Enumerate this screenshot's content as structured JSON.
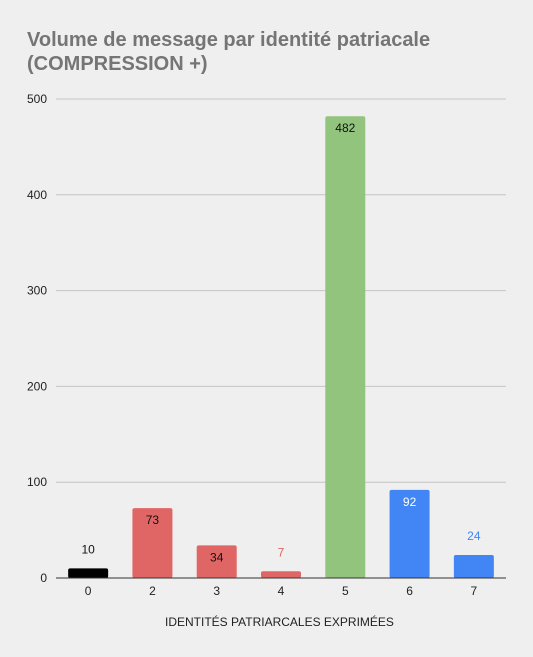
{
  "chart_data": {
    "type": "bar",
    "title_lines": [
      "Volume de message par identité patriacale",
      "(COMPRESSION +)"
    ],
    "xlabel": "IDENTITÉS PATRIARCALES EXPRIMÉES",
    "ylabel": "",
    "ylim": [
      0,
      500
    ],
    "yticks": [
      0,
      100,
      200,
      300,
      400,
      500
    ],
    "grid": true,
    "categories": [
      "0",
      "2",
      "3",
      "4",
      "5",
      "6",
      "7"
    ],
    "values": [
      10,
      73,
      34,
      7,
      482,
      92,
      24
    ],
    "data_labels": [
      "10",
      "73",
      "34",
      "7",
      "482",
      "92",
      "24"
    ],
    "bar_colors": [
      "#000000",
      "#e06666",
      "#e06666",
      "#e06666",
      "#93c47d",
      "#4285f4",
      "#4285f4"
    ]
  }
}
